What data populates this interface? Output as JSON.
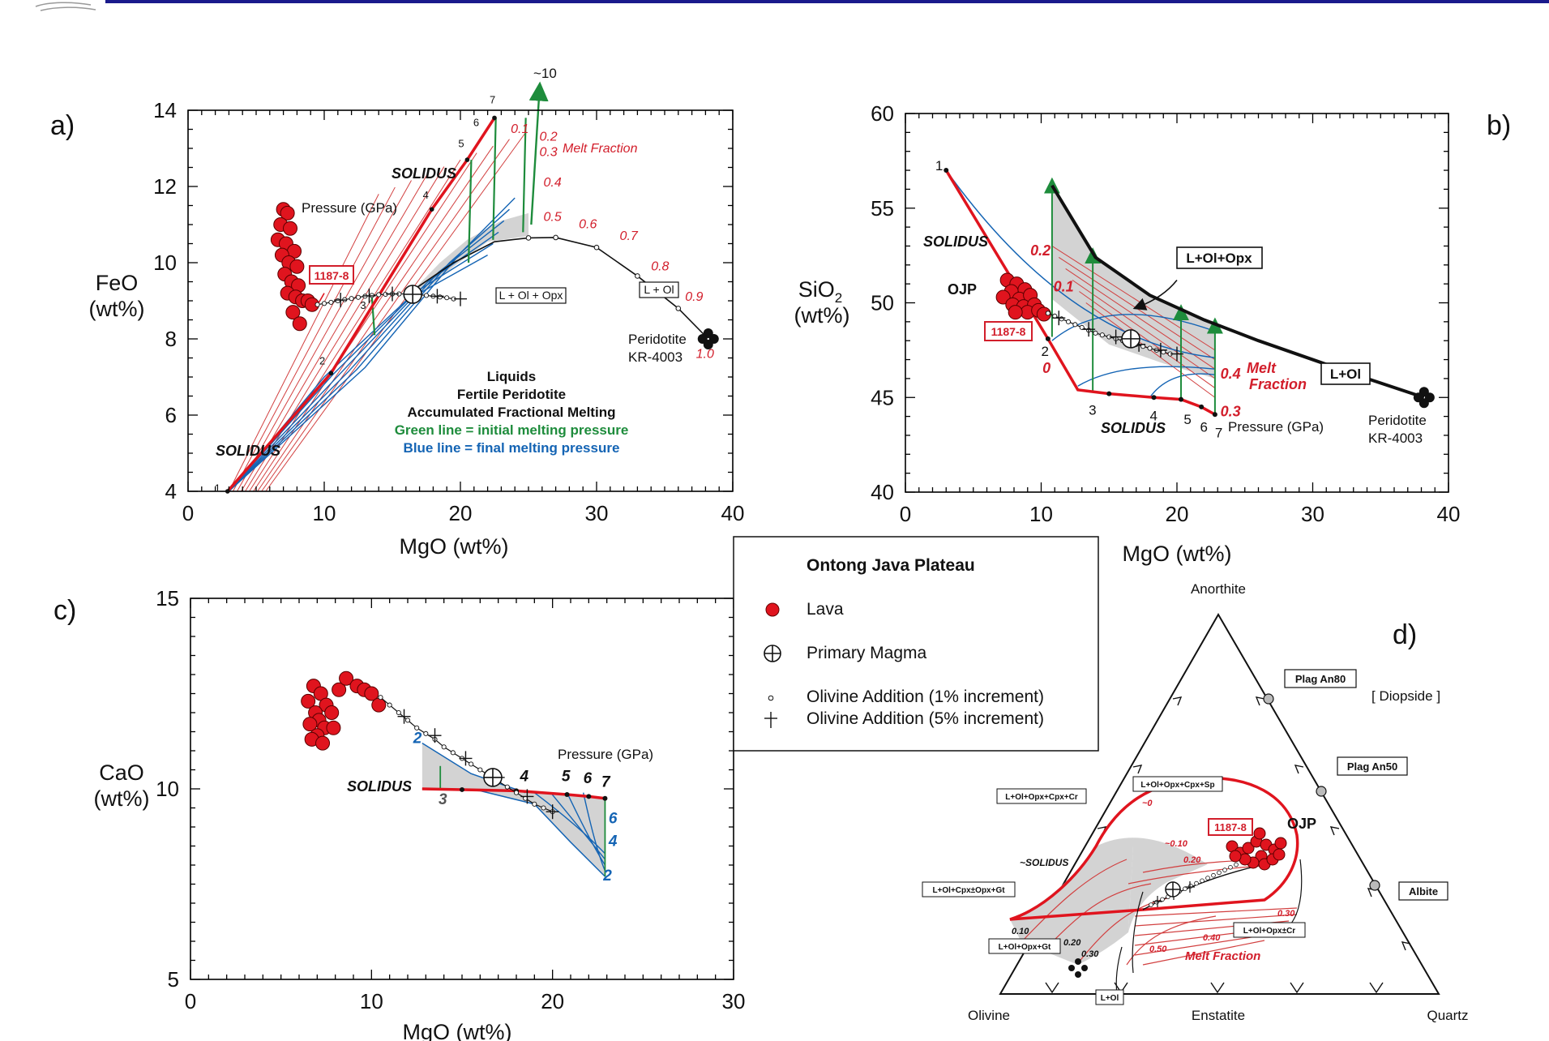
{
  "header": {
    "bar_color": "#1a1a8c"
  },
  "colors": {
    "lava": "#e0141e",
    "solidus": "#e0141e",
    "initial_pressure": "#1e8c3c",
    "final_pressure": "#1464b4",
    "field": "#d3d3d3",
    "thin_red": "#d24040"
  },
  "legend": {
    "title": "Ontong Java Plateau",
    "items": [
      {
        "symbol": "red-dot-icon",
        "label": "Lava"
      },
      {
        "symbol": "circle-cross-icon",
        "label": "Primary Magma"
      },
      {
        "symbol": "small-circle-icon",
        "label": "Olivine Addition  (1% increment)"
      },
      {
        "symbol": "plus-icon",
        "label": "Olivine Addition  (5% increment)"
      }
    ]
  },
  "chart_data": [
    {
      "panel": "a)",
      "type": "scatter",
      "xlabel": "MgO   (wt%)",
      "ylabel_line1": "FeO",
      "ylabel_line2": "(wt%)",
      "xlim": [
        0,
        40
      ],
      "ylim": [
        4,
        14
      ],
      "xticks": [
        "0",
        "10",
        "20",
        "30",
        "40"
      ],
      "yticks": [
        "4",
        "6",
        "8",
        "10",
        "12",
        "14"
      ],
      "lava": [
        [
          7.0,
          11.4
        ],
        [
          7.3,
          11.3
        ],
        [
          6.8,
          11.0
        ],
        [
          7.5,
          10.9
        ],
        [
          6.6,
          10.6
        ],
        [
          7.2,
          10.5
        ],
        [
          7.8,
          10.3
        ],
        [
          6.9,
          10.2
        ],
        [
          7.4,
          10.0
        ],
        [
          8.0,
          9.9
        ],
        [
          7.1,
          9.7
        ],
        [
          7.6,
          9.5
        ],
        [
          8.1,
          9.4
        ],
        [
          7.3,
          9.2
        ],
        [
          7.9,
          9.1
        ],
        [
          8.4,
          9.0
        ],
        [
          8.8,
          9.0
        ],
        [
          9.1,
          8.9
        ],
        [
          7.7,
          8.7
        ],
        [
          8.2,
          8.4
        ]
      ],
      "olivine_1pct": [
        [
          9.5,
          8.9
        ],
        [
          10.0,
          8.93
        ],
        [
          10.5,
          8.96
        ],
        [
          11.0,
          9.0
        ],
        [
          11.5,
          9.03
        ],
        [
          12.0,
          9.06
        ],
        [
          12.5,
          9.09
        ],
        [
          13.0,
          9.12
        ],
        [
          13.5,
          9.14
        ],
        [
          14.0,
          9.16
        ],
        [
          14.5,
          9.17
        ],
        [
          15.0,
          9.18
        ],
        [
          15.5,
          9.18
        ],
        [
          16.0,
          9.18
        ],
        [
          16.5,
          9.17
        ],
        [
          17.0,
          9.16
        ],
        [
          17.5,
          9.14
        ],
        [
          18.0,
          9.12
        ],
        [
          18.5,
          9.1
        ],
        [
          19.0,
          9.08
        ],
        [
          19.5,
          9.05
        ]
      ],
      "olivine_5pct": [
        [
          11.2,
          9.02
        ],
        [
          13.3,
          9.13
        ],
        [
          15.0,
          9.18
        ],
        [
          16.6,
          9.17
        ],
        [
          18.3,
          9.12
        ],
        [
          20.0,
          9.05
        ]
      ],
      "primary_magma": [
        16.5,
        9.17
      ],
      "solidus": [
        [
          2.9,
          4.0
        ],
        [
          10.5,
          7.1
        ],
        [
          17.9,
          11.4
        ],
        [
          20.5,
          12.7
        ],
        [
          22.5,
          13.8
        ]
      ],
      "solidus_labels": [
        "1",
        "2",
        "3",
        "4",
        "5",
        "6",
        "7"
      ],
      "melt_curve_x": [
        22.5,
        25.0,
        27.0,
        30.0,
        33.0,
        36.0,
        38.2
      ],
      "melt_curve_y": [
        10.55,
        10.65,
        10.66,
        10.4,
        9.65,
        8.8,
        8.0
      ],
      "melt_fraction_labels": [
        "0.1",
        "0.2",
        "0.3",
        "0.4",
        "0.5",
        "0.6",
        "0.7",
        "0.8",
        "0.9",
        "1.0"
      ],
      "melt_fraction_title": "Melt Fraction",
      "pressure_label": "Pressure  (GPa)",
      "sample_label": "1187-8",
      "solidus_label": "SOLIDUS",
      "field_label": "L + Ol + Opx",
      "field_label2": "L + Ol",
      "source_label_line1": "Peridotite",
      "source_label_line2": "KR-4003",
      "source_point": [
        38.2,
        8.0
      ],
      "top_label": "~10",
      "notes": [
        "Liquids",
        "Fertile Peridotite",
        "Accumulated Fractional Melting",
        "Green line = initial melting pressure",
        "Blue line = final melting pressure"
      ]
    },
    {
      "panel": "b)",
      "type": "scatter",
      "xlabel": "MgO   (wt%)",
      "ylabel_line1": "SiO",
      "ylabel_sub": "2",
      "ylabel_line2": "(wt%)",
      "xlim": [
        0,
        40
      ],
      "ylim": [
        40,
        60
      ],
      "xticks": [
        "0",
        "10",
        "20",
        "30",
        "40"
      ],
      "yticks": [
        "40",
        "45",
        "50",
        "55",
        "60"
      ],
      "lava": [
        [
          7.5,
          51.2
        ],
        [
          8.2,
          51.0
        ],
        [
          7.8,
          50.6
        ],
        [
          8.8,
          50.7
        ],
        [
          7.2,
          50.3
        ],
        [
          8.4,
          50.2
        ],
        [
          9.2,
          50.4
        ],
        [
          7.9,
          49.9
        ],
        [
          8.7,
          49.8
        ],
        [
          9.5,
          49.9
        ],
        [
          9.0,
          49.5
        ],
        [
          8.1,
          49.5
        ],
        [
          9.8,
          49.6
        ],
        [
          10.2,
          49.4
        ]
      ],
      "olivine_1pct": [
        [
          10.5,
          49.45
        ],
        [
          11.0,
          49.3
        ],
        [
          11.5,
          49.15
        ],
        [
          12.0,
          49.0
        ],
        [
          12.5,
          48.85
        ],
        [
          13.0,
          48.7
        ],
        [
          13.5,
          48.55
        ],
        [
          14.0,
          48.4
        ],
        [
          14.5,
          48.3
        ],
        [
          15.0,
          48.2
        ],
        [
          15.5,
          48.1
        ],
        [
          16.0,
          48.0
        ],
        [
          16.5,
          47.9
        ],
        [
          17.0,
          47.8
        ],
        [
          17.5,
          47.7
        ],
        [
          18.0,
          47.6
        ],
        [
          18.5,
          47.5
        ],
        [
          19.0,
          47.4
        ],
        [
          19.5,
          47.3
        ]
      ],
      "olivine_5pct": [
        [
          11.3,
          49.2
        ],
        [
          13.5,
          48.6
        ],
        [
          15.5,
          48.2
        ],
        [
          17.2,
          47.8
        ],
        [
          18.8,
          47.5
        ],
        [
          20.0,
          47.3
        ]
      ],
      "primary_magma": [
        16.6,
        48.1
      ],
      "solidus": [
        [
          3.0,
          57.0
        ],
        [
          10.5,
          48.1
        ],
        [
          12.7,
          45.4
        ],
        [
          15.0,
          45.2
        ],
        [
          18.3,
          45.0
        ],
        [
          20.3,
          44.9
        ],
        [
          21.8,
          44.5
        ],
        [
          22.8,
          44.1
        ]
      ],
      "solidus_labels": [
        "1",
        "2",
        "3",
        "4",
        "5",
        "6",
        "7"
      ],
      "upper_curve_x": [
        10.8,
        14.0,
        18.0,
        22.0,
        26.0,
        30.0,
        34.0,
        38.2
      ],
      "upper_curve_y": [
        56.2,
        52.4,
        50.4,
        49.1,
        48.0,
        47.0,
        46.0,
        45.0
      ],
      "melt_fraction_labels": [
        "0",
        "0.1",
        "0.2",
        "0.3",
        "0.4"
      ],
      "melt_fraction_title_1": "Melt",
      "melt_fraction_title_2": "Fraction",
      "pressure_label": "Pressure  (GPa)",
      "sample_label": "1187-8",
      "group_label": "OJP",
      "solidus_label": "SOLIDUS",
      "field_label": "L+Ol+Opx",
      "field_label2": "L+Ol",
      "source_label_line1": "Peridotite",
      "source_label_line2": "KR-4003",
      "source_point": [
        38.2,
        45.0
      ]
    },
    {
      "panel": "c)",
      "type": "scatter",
      "xlabel": "MgO   (wt%)",
      "ylabel_line1": "CaO",
      "ylabel_line2": "(wt%)",
      "xlim": [
        0,
        30
      ],
      "ylim": [
        5,
        15
      ],
      "xticks": [
        "0",
        "10",
        "20",
        "30"
      ],
      "yticks": [
        "5",
        "10",
        "15"
      ],
      "lava": [
        [
          6.8,
          12.7
        ],
        [
          7.2,
          12.5
        ],
        [
          6.5,
          12.3
        ],
        [
          7.5,
          12.2
        ],
        [
          6.9,
          12.0
        ],
        [
          7.8,
          12.0
        ],
        [
          7.1,
          11.8
        ],
        [
          6.6,
          11.7
        ],
        [
          7.4,
          11.6
        ],
        [
          7.9,
          11.6
        ],
        [
          7.0,
          11.4
        ],
        [
          6.7,
          11.3
        ],
        [
          7.3,
          11.2
        ],
        [
          8.2,
          12.6
        ],
        [
          8.6,
          12.9
        ],
        [
          9.2,
          12.7
        ],
        [
          9.6,
          12.6
        ],
        [
          10.0,
          12.5
        ],
        [
          10.4,
          12.2
        ]
      ],
      "olivine_1pct": [
        [
          10.5,
          12.4
        ],
        [
          11.0,
          12.2
        ],
        [
          11.5,
          12.0
        ],
        [
          12.0,
          11.8
        ],
        [
          12.5,
          11.6
        ],
        [
          13.0,
          11.45
        ],
        [
          13.5,
          11.3
        ],
        [
          14.0,
          11.1
        ],
        [
          14.5,
          10.95
        ],
        [
          15.0,
          10.8
        ],
        [
          15.5,
          10.65
        ],
        [
          16.0,
          10.5
        ],
        [
          16.5,
          10.35
        ],
        [
          17.0,
          10.2
        ],
        [
          17.5,
          10.05
        ],
        [
          18.0,
          9.9
        ],
        [
          18.5,
          9.75
        ],
        [
          19.0,
          9.6
        ],
        [
          19.5,
          9.5
        ],
        [
          20.0,
          9.4
        ]
      ],
      "olivine_5pct": [
        [
          11.8,
          11.9
        ],
        [
          13.5,
          11.4
        ],
        [
          15.2,
          10.8
        ],
        [
          17.0,
          10.3
        ],
        [
          18.6,
          9.8
        ],
        [
          20.0,
          9.4
        ]
      ],
      "primary_magma": [
        16.7,
        10.3
      ],
      "solidus": [
        [
          12.8,
          10.0
        ],
        [
          15.0,
          9.98
        ],
        [
          18.0,
          9.95
        ],
        [
          20.8,
          9.85
        ],
        [
          22.0,
          9.8
        ],
        [
          22.9,
          9.75
        ]
      ],
      "pressure_numbers": [
        "2",
        "3",
        "4",
        "5",
        "6",
        "7"
      ],
      "final_labels": [
        "6",
        "4",
        "2"
      ],
      "pressure_label": "Pressure  (GPa)",
      "solidus_label": "SOLIDUS"
    },
    {
      "panel": "d)",
      "type": "ternary",
      "corners": [
        "Anorthite",
        "Olivine",
        "Quartz"
      ],
      "base_mid": "Enstatite",
      "projection_note": "[ Diopside ]",
      "phase_points": [
        "Plag An80",
        "Plag An50",
        "Albite"
      ],
      "fields": [
        "L+Ol+Opx+Cpx+Cr",
        "L+Ol+Opx+Cpx+Sp",
        "L+Ol+Cpx±Opx+Gt",
        "L+Ol+Opx+Gt",
        "L+Ol+Opx±Cr",
        "L+Ol"
      ],
      "sample_label": "1187-8",
      "group_label": "OJP",
      "solidus_label": "~SOLIDUS",
      "melt_fraction_title": "Melt Fraction",
      "melt_labels": [
        "~0",
        "~0.10",
        "0.20",
        "0.30",
        "0.40",
        "0.50",
        "0.10",
        "0.20",
        "0.30"
      ]
    }
  ]
}
